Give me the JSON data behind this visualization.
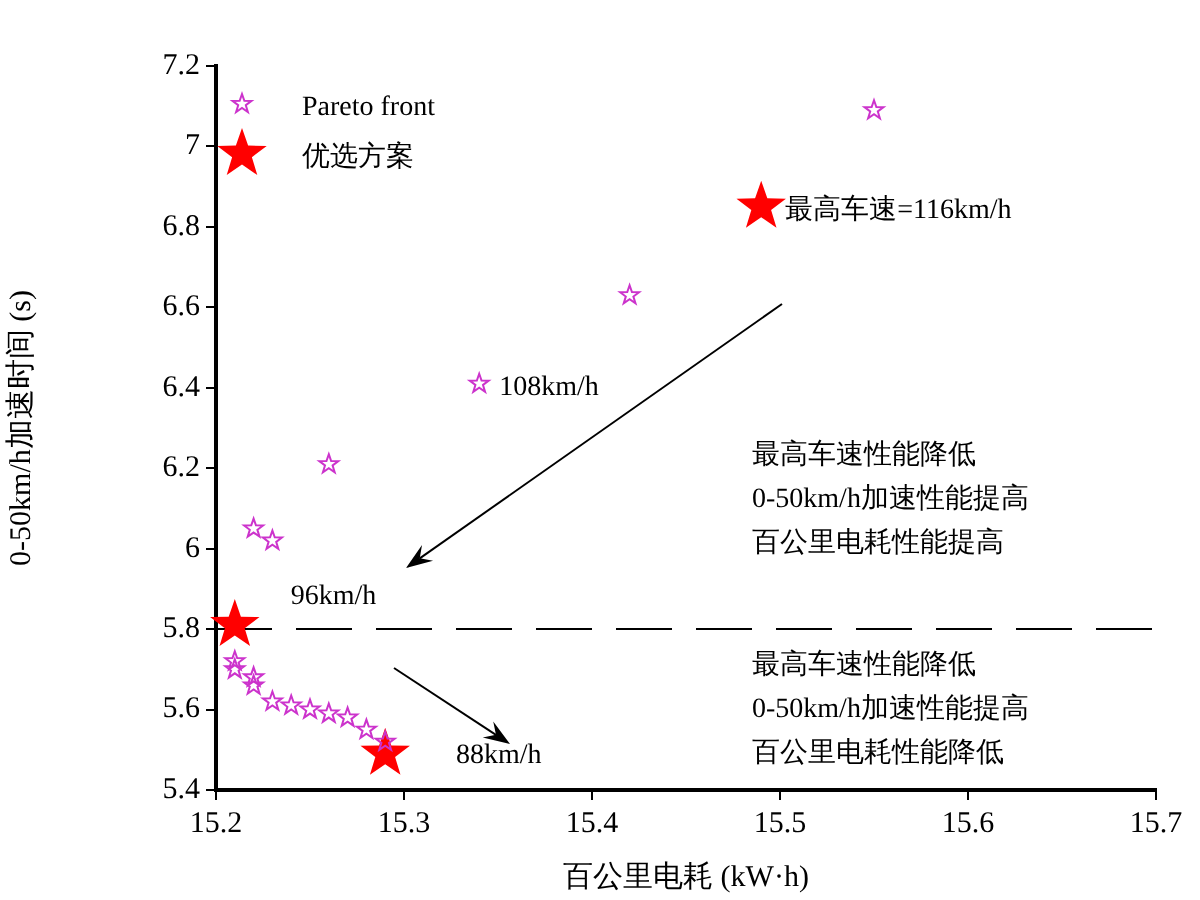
{
  "chart_data": {
    "type": "scatter",
    "xlabel": "百公里电耗 (kW·h)",
    "ylabel": "0-50km/h加速时间 (s)",
    "series": [
      {
        "name": "Pareto front",
        "color": "#cc33cc",
        "marker": "star",
        "x": [
          15.55,
          15.42,
          15.34,
          15.26,
          15.22,
          15.23,
          15.21,
          15.21,
          15.22,
          15.22,
          15.23,
          15.24,
          15.25,
          15.26,
          15.27,
          15.28,
          15.29
        ],
        "values": [
          7.09,
          6.63,
          6.41,
          6.21,
          6.05,
          6.02,
          5.72,
          5.7,
          5.68,
          5.66,
          5.62,
          5.61,
          5.6,
          5.59,
          5.58,
          5.55,
          5.52
        ]
      },
      {
        "name": "优选方案",
        "color": "#ff0000",
        "marker": "star",
        "x": [
          15.49,
          15.21,
          15.29
        ],
        "values": [
          6.85,
          5.81,
          5.49
        ]
      }
    ],
    "xlim": [
      15.2,
      15.7
    ],
    "xticks": [
      15.2,
      15.3,
      15.4,
      15.5,
      15.6,
      15.7
    ],
    "ylim": [
      5.4,
      7.2
    ],
    "yticks": [
      5.4,
      5.6,
      5.8,
      6,
      6.2,
      6.4,
      6.6,
      6.8,
      7,
      7.2
    ],
    "ref_lines": [
      {
        "axis": "y",
        "value": 5.8,
        "color": "#000000",
        "line_style": "dashed"
      }
    ],
    "annotations": [
      {
        "text": "最高车速=116km/h",
        "x": 15.49,
        "y": 6.85
      },
      {
        "text": "108km/h",
        "x": 15.34,
        "y": 6.41
      },
      {
        "text": "96km/h",
        "x": 15.21,
        "y": 5.81
      },
      "88km/h",
      "最高车速性能降低",
      "0-50km/h加速性能提高",
      "百公里电耗性能提高",
      "最高车速性能降低",
      "0-50km/h加速性能提高",
      "百公里电耗性能降低"
    ],
    "legend": "top left",
    "grid": false
  }
}
